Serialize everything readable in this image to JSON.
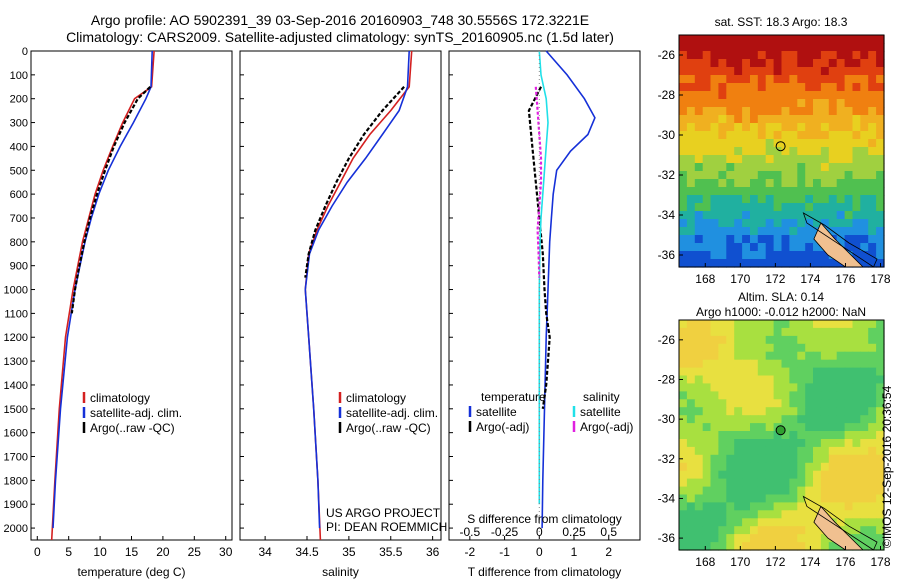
{
  "header": {
    "line1": "Argo profile: AO 5902391_39 03-Sep-2016 20160903_748 30.5556S 172.3221E",
    "line2": "Climatology: CARS2009. Satellite-adjusted climatology: synTS_20160905.nc (1.5d later)"
  },
  "stamp": "©IMOS 12-Sep-2016 20:36:54",
  "colors": {
    "climatology": "#d42020",
    "satellite": "#1530d8",
    "argo": "#000000",
    "sat_salinity": "#20e0e8",
    "argo_salinity": "#e020e0",
    "land": "#f0c090"
  },
  "chart_data": [
    {
      "type": "line",
      "id": "temperature",
      "xlabel": "temperature (deg C)",
      "xlim": [
        -1,
        31
      ],
      "ylim": [
        0,
        2050
      ],
      "xticks": [
        0,
        5,
        10,
        15,
        20,
        25,
        30
      ],
      "yticks": [
        0,
        100,
        200,
        300,
        400,
        500,
        600,
        700,
        800,
        900,
        1000,
        1100,
        1200,
        1300,
        1400,
        1500,
        1600,
        1700,
        1800,
        1900,
        2000
      ],
      "legend": [
        "climatology",
        "satellite-adj. clim.",
        "Argo(..raw -QC)"
      ],
      "series": [
        {
          "name": "climatology",
          "color": "#d42020",
          "dash": "",
          "depth": [
            0,
            150,
            200,
            300,
            400,
            500,
            600,
            700,
            800,
            1000,
            1200,
            1500,
            1800,
            2050
          ],
          "x": [
            18.6,
            18.2,
            15.5,
            13.6,
            12.0,
            10.5,
            9.2,
            8.2,
            7.2,
            5.7,
            4.5,
            3.5,
            2.8,
            2.3
          ]
        },
        {
          "name": "satellite-adj. clim.",
          "color": "#1530d8",
          "dash": "",
          "depth": [
            0,
            150,
            200,
            300,
            400,
            500,
            600,
            700,
            800,
            1000,
            1200,
            1500,
            1800,
            2000
          ],
          "x": [
            18.3,
            18.1,
            17.3,
            15.3,
            13.2,
            11.3,
            9.8,
            8.6,
            7.6,
            6.0,
            4.8,
            3.7,
            2.9,
            2.5
          ]
        },
        {
          "name": "Argo(..raw -QC)",
          "color": "#000000",
          "dash": "4,2",
          "depth": [
            150,
            200,
            300,
            400,
            500,
            600,
            700,
            800,
            900,
            1000,
            1100
          ],
          "x": [
            18.0,
            16.0,
            13.9,
            12.2,
            10.8,
            9.5,
            8.4,
            7.5,
            6.7,
            6.0,
            5.5
          ]
        }
      ]
    },
    {
      "type": "line",
      "id": "salinity",
      "xlabel": "salinity",
      "xlim": [
        33.7,
        36.1
      ],
      "ylim": [
        0,
        2050
      ],
      "xticks": [
        34,
        34.5,
        35,
        35.5,
        36
      ],
      "legend": [
        "climatology",
        "satellite-adj. clim.",
        "Argo(..raw -QC)"
      ],
      "annotation": [
        "US ARGO PROJECT",
        "PI: DEAN ROEMMICH"
      ],
      "series": [
        {
          "name": "climatology",
          "color": "#d42020",
          "dash": "",
          "depth": [
            0,
            150,
            250,
            350,
            450,
            550,
            650,
            750,
            850,
            1000,
            1200,
            1500,
            1800,
            2050
          ],
          "x": [
            35.75,
            35.72,
            35.5,
            35.25,
            35.05,
            34.9,
            34.75,
            34.62,
            34.52,
            34.48,
            34.52,
            34.58,
            34.63,
            34.66
          ]
        },
        {
          "name": "satellite-adj. clim.",
          "color": "#1530d8",
          "dash": "",
          "depth": [
            0,
            150,
            250,
            350,
            450,
            550,
            650,
            750,
            850,
            1000,
            1200,
            1500,
            1800,
            2000
          ],
          "x": [
            35.72,
            35.7,
            35.6,
            35.4,
            35.2,
            34.98,
            34.8,
            34.64,
            34.53,
            34.48,
            34.52,
            34.58,
            34.63,
            34.65
          ]
        },
        {
          "name": "Argo(..raw -QC)",
          "color": "#000000",
          "dash": "4,2",
          "depth": [
            150,
            250,
            350,
            450,
            550,
            650,
            750,
            850,
            950
          ],
          "x": [
            35.66,
            35.4,
            35.18,
            35.0,
            34.85,
            34.72,
            34.6,
            34.52,
            34.48
          ]
        }
      ]
    },
    {
      "type": "line",
      "id": "difference",
      "xlabel": "T difference from climatology",
      "xlabel_top": "S difference from climatology",
      "xlim": [
        -2.6,
        2.9
      ],
      "xticks": [
        -2,
        -1,
        0,
        1,
        2
      ],
      "s_ticks": [
        -0.5,
        -0.25,
        0,
        0.25,
        0.5
      ],
      "ylim": [
        0,
        2050
      ],
      "legend_t_title": "temperature",
      "legend_s_title": "salinity",
      "legend_t": [
        "satellite",
        "Argo(-adj)"
      ],
      "legend_s": [
        "satellite",
        "Argo(-adj)"
      ],
      "series": [
        {
          "name": "satellite",
          "group": "temperature",
          "color": "#1530d8",
          "dash": "",
          "depth": [
            0,
            100,
            200,
            280,
            350,
            420,
            500,
            600,
            700,
            800,
            1000,
            1200,
            1500,
            1800,
            2000
          ],
          "x": [
            0.2,
            0.8,
            1.3,
            1.6,
            1.4,
            0.9,
            0.5,
            0.4,
            0.35,
            0.3,
            0.25,
            0.2,
            0.15,
            0.1,
            0.08
          ]
        },
        {
          "name": "Argo(-adj)",
          "group": "temperature",
          "color": "#000000",
          "dash": "4,2",
          "depth": [
            150,
            250,
            400,
            550,
            700,
            850,
            1000,
            1100,
            1200,
            1300,
            1400,
            1500
          ],
          "x": [
            0.05,
            -0.3,
            -0.2,
            -0.1,
            0.0,
            0.1,
            0.15,
            0.2,
            0.3,
            0.25,
            0.2,
            0.1
          ]
        },
        {
          "name": "satellite",
          "group": "salinity",
          "color": "#20e0e8",
          "dash": "",
          "depth": [
            0,
            100,
            200,
            300,
            400,
            500,
            600,
            700,
            800,
            1000,
            1200,
            1500,
            1800,
            1900
          ],
          "x": [
            0.0,
            0.05,
            0.2,
            0.25,
            0.2,
            0.15,
            0.1,
            0.05,
            0.02,
            0.0,
            0.0,
            0.0,
            0.0,
            0.0
          ]
        },
        {
          "name": "Argo(-adj)",
          "group": "salinity",
          "color": "#e020e0",
          "dash": "3,2",
          "depth": [
            150,
            250,
            350,
            450,
            550,
            650,
            750,
            850,
            950
          ],
          "x": [
            -0.1,
            -0.05,
            0.0,
            0.05,
            0.05,
            0.0,
            -0.05,
            -0.02,
            0.0
          ]
        }
      ]
    },
    {
      "type": "heatmap",
      "id": "sst_map",
      "title": "sat. SST: 18.3  Argo: 18.3",
      "xlim": [
        166.5,
        178.2
      ],
      "ylim": [
        -36.6,
        -25
      ],
      "xticks": [
        168,
        170,
        172,
        174,
        176,
        178
      ],
      "yticks": [
        -26,
        -28,
        -30,
        -32,
        -34,
        -36
      ],
      "marker": {
        "lon": 172.3,
        "lat": -30.56
      }
    },
    {
      "type": "heatmap",
      "id": "sla_map",
      "title": "Altim. SLA: 0.14",
      "title2": "Argo h1000: -0.012  h2000: NaN",
      "xlim": [
        166.5,
        178.2
      ],
      "ylim": [
        -36.6,
        -25
      ],
      "xticks": [
        168,
        170,
        172,
        174,
        176,
        178
      ],
      "yticks": [
        -26,
        -28,
        -30,
        -32,
        -34,
        -36
      ],
      "marker": {
        "lon": 172.3,
        "lat": -30.56
      }
    }
  ]
}
